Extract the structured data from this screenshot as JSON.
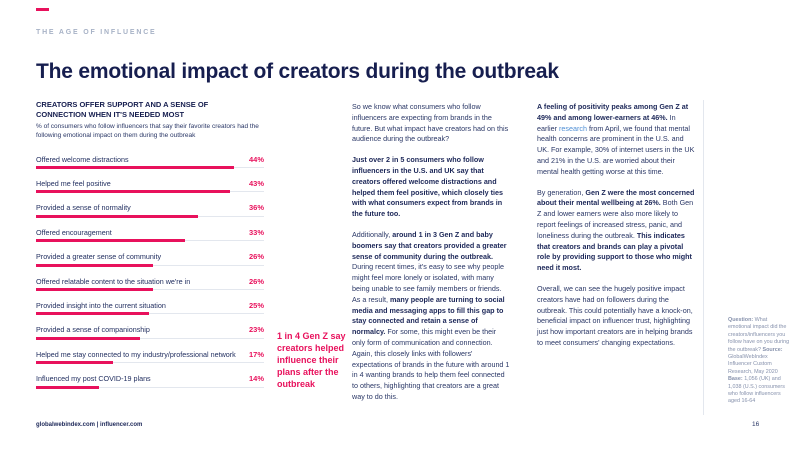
{
  "page": {
    "eyebrow": "THE AGE OF INFLUENCE",
    "title": "The emotional impact of creators during the outbreak",
    "footer_left": "globalwebindex.com | influencer.com",
    "page_number": "16"
  },
  "colors": {
    "accent_pink": "#e8115c",
    "navy": "#161e4f",
    "body_text": "#2a3766",
    "link_blue": "#4f8fd5",
    "note_gray": "#8691ac"
  },
  "chart": {
    "heading": "CREATORS OFFER SUPPORT AND A SENSE OF CONNECTION WHEN IT'S NEEDED MOST",
    "subtitle": "% of consumers who follow influencers that say their favorite creators had the following emotional impact on them during the outbreak"
  },
  "chart_data": {
    "type": "bar",
    "orientation": "horizontal",
    "title": "CREATORS OFFER SUPPORT AND A SENSE OF CONNECTION WHEN IT'S NEEDED MOST",
    "categories": [
      "Offered welcome distractions",
      "Helped me feel positive",
      "Provided a sense of normality",
      "Offered encouragement",
      "Provided a greater sense of community",
      "Offered relatable content to the situation we're in",
      "Provided insight into the current situation",
      "Provided a sense of companionship",
      "Helped me stay connected to my industry/professional network",
      "Influenced my post COVID-19 plans"
    ],
    "values": [
      44,
      43,
      36,
      33,
      26,
      26,
      25,
      23,
      17,
      14
    ],
    "value_suffix": "%",
    "xlim": [
      0,
      50
    ],
    "grid": false,
    "legend": false,
    "bar_color": "#e8115c"
  },
  "annotation": {
    "text": "1 in 4 Gen Z say creators helped influence their plans after the outbreak"
  },
  "columns": {
    "middle": [
      [
        {
          "style": "regular",
          "text": "So we know what consumers who follow influencers are expecting from brands in the future. But what impact have creators had on this audience during the outbreak?"
        }
      ],
      [
        {
          "style": "bold",
          "text": "Just over 2 in 5 consumers who follow influencers in the U.S. and UK say that creators offered welcome distractions and helped them feel positive, which closely ties with what consumers expect from brands in the future too."
        }
      ],
      [
        {
          "style": "regular",
          "text": "Additionally, "
        },
        {
          "style": "bold",
          "text": "around 1 in 3 Gen Z and baby boomers say that creators provided a greater sense of community during the outbreak."
        },
        {
          "style": "regular",
          "text": " During recent times, it's easy to see why people might feel more lonely or isolated, with many being unable to see family members or friends. As a result, "
        },
        {
          "style": "bold",
          "text": "many people are turning to social media and messaging apps to fill this gap to stay connected and retain a sense of normalcy."
        },
        {
          "style": "regular",
          "text": " For some, this might even be their only form of communication and connection. Again, this closely links with followers' expectations of brands in the future with around 1 in 4 wanting brands to help them feel connected to others, highlighting that creators are a great way to do this."
        }
      ]
    ],
    "right": [
      [
        {
          "style": "bold",
          "text": "A feeling of positivity peaks among Gen Z at 49% and among lower-earners at 46%."
        },
        {
          "style": "regular",
          "text": " In earlier "
        },
        {
          "style": "link",
          "text": "research"
        },
        {
          "style": "regular",
          "text": " from April, we found that mental health concerns are prominent in the U.S. and UK. For example, 30% of internet users in the UK and 21% in the U.S. are worried about their mental health getting worse at this time."
        }
      ],
      [
        {
          "style": "regular",
          "text": "By generation, "
        },
        {
          "style": "bold",
          "text": "Gen Z were the most concerned about their mental wellbeing at 26%."
        },
        {
          "style": "regular",
          "text": " Both Gen Z and lower earners were also more likely to report feelings of increased stress, panic, and loneliness during the outbreak. "
        },
        {
          "style": "bold",
          "text": "This indicates that creators and brands can play a pivotal role by providing support to those who might need it most."
        }
      ],
      [
        {
          "style": "regular",
          "text": "Overall, we can see the hugely positive impact creators have had on followers during the outbreak. This could potentially have a knock-on, beneficial impact on influencer trust, highlighting just how important creators are in helping brands to meet consumers' changing expectations."
        }
      ]
    ]
  },
  "note": [
    {
      "style": "bold",
      "text": "Question: "
    },
    {
      "style": "regular",
      "text": "What emotional impact did the creators/influencers you follow have on you during the outbreak? "
    },
    {
      "style": "bold",
      "text": "Source: "
    },
    {
      "style": "regular",
      "text": "GlobalWebIndex Influencer Custom Research, May 2020 "
    },
    {
      "style": "bold",
      "text": "Base: "
    },
    {
      "style": "regular",
      "text": "1,056 (UK) and 1,038 (U.S.) consumers who follow influencers aged 16-64"
    }
  ]
}
